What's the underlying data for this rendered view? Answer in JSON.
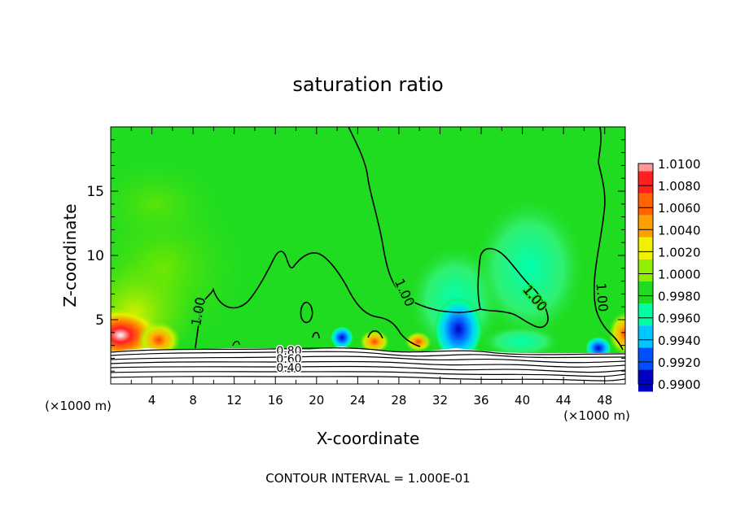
{
  "chart_data": {
    "type": "heatmap",
    "title": "saturation ratio",
    "xlabel": "X-coordinate",
    "ylabel": "Z-coordinate",
    "x_unit": "(×1000 m)",
    "x_unit_right": "(×1000 m)",
    "xlim": [
      0,
      50
    ],
    "ylim": [
      0,
      20
    ],
    "x_ticks": [
      4,
      8,
      12,
      16,
      20,
      24,
      28,
      32,
      36,
      40,
      44,
      48
    ],
    "y_ticks": [
      5,
      10,
      15
    ],
    "colorbar": {
      "levels": [
        "1.0100",
        "1.0080",
        "1.0060",
        "1.0040",
        "1.0020",
        "1.0000",
        "0.9980",
        "0.9960",
        "0.9940",
        "0.9920",
        "0.9900"
      ],
      "colors": [
        "#ff9999",
        "#ff2020",
        "#ff6400",
        "#ffa000",
        "#f0f000",
        "#90ee00",
        "#20dc20",
        "#00ffa0",
        "#00c8ff",
        "#0050ff",
        "#0000c0",
        "#800080"
      ]
    },
    "contour_labels": [
      "1.00",
      "1.00",
      "1.00",
      "1.00",
      "0.80",
      "0.60",
      "0.40"
    ],
    "footer": "CONTOUR INTERVAL = 1.000E-01"
  }
}
